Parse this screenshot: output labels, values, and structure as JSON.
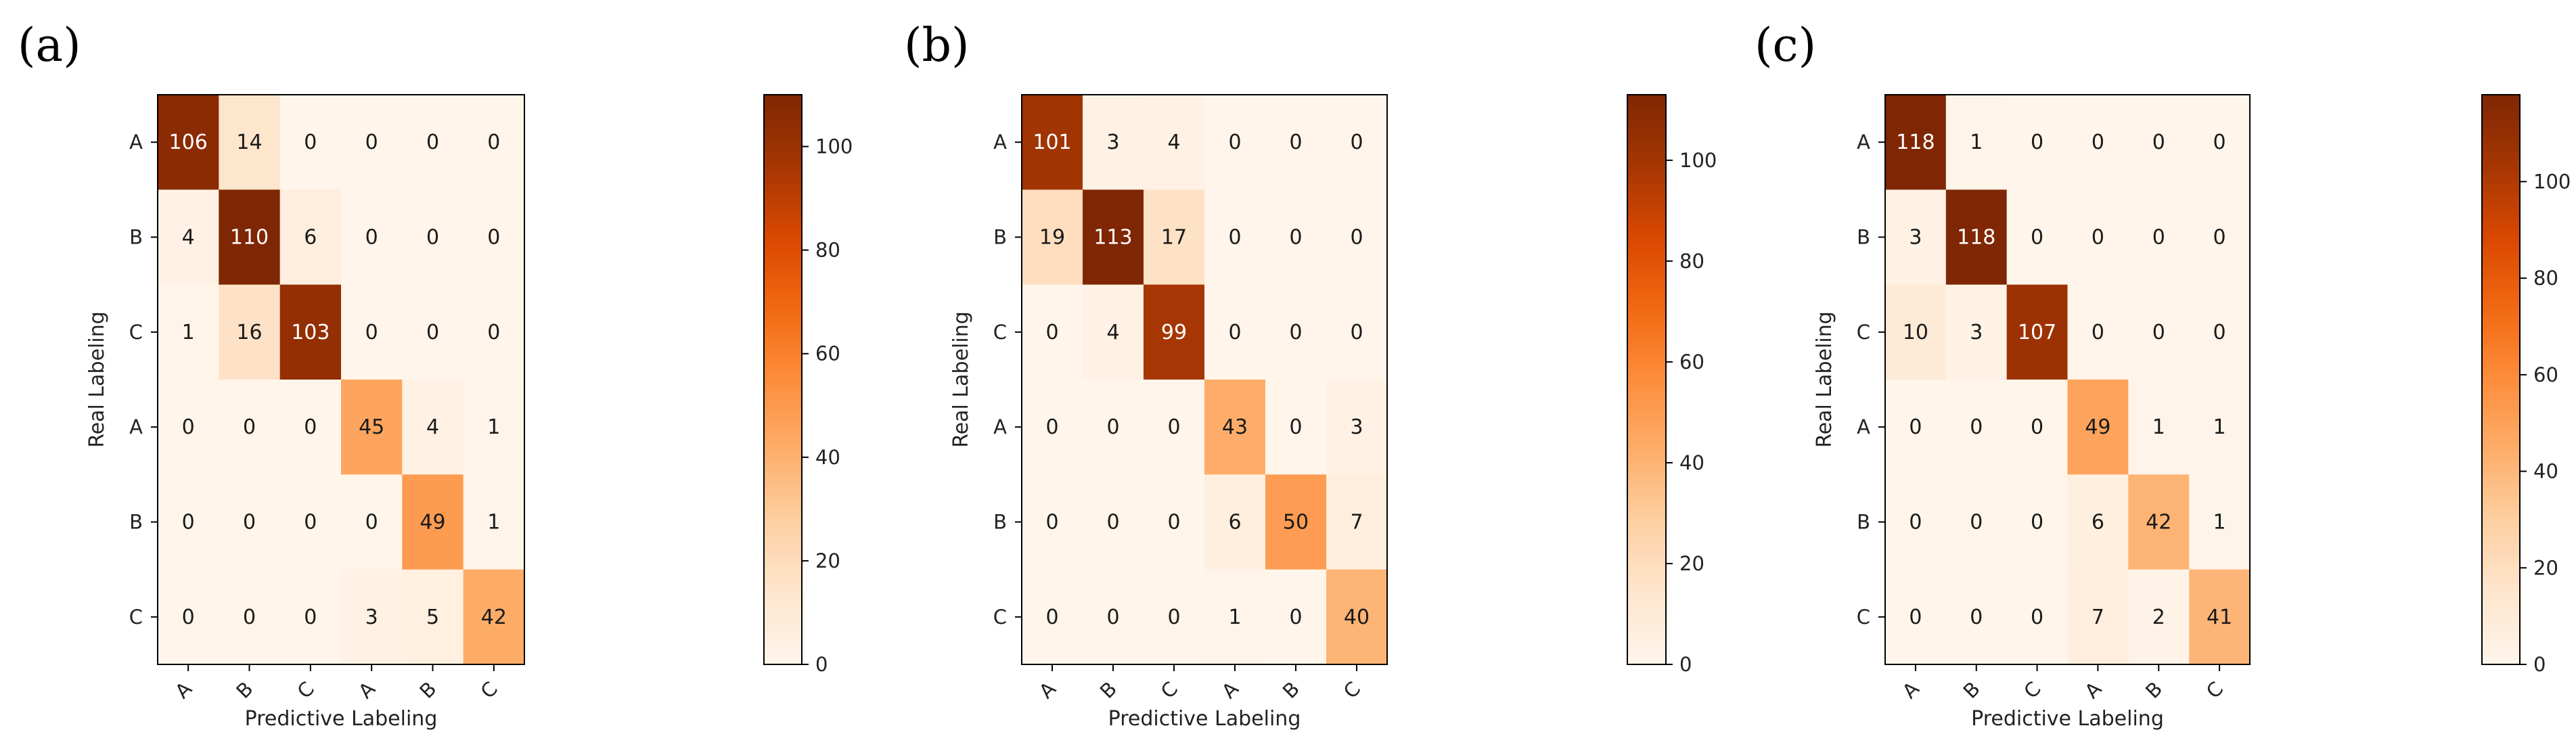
{
  "chart_data": [
    {
      "panel_label": "(a)",
      "type": "heatmap",
      "title": "",
      "xlabel": "Predictive Labeling",
      "ylabel": "Real Labeling",
      "x_categories": [
        "A",
        "B",
        "C",
        "A",
        "B",
        "C"
      ],
      "y_categories": [
        "A",
        "B",
        "C",
        "A",
        "B",
        "C"
      ],
      "values": [
        [
          106,
          14,
          0,
          0,
          0,
          0
        ],
        [
          4,
          110,
          6,
          0,
          0,
          0
        ],
        [
          1,
          16,
          103,
          0,
          0,
          0
        ],
        [
          0,
          0,
          0,
          45,
          4,
          1
        ],
        [
          0,
          0,
          0,
          0,
          49,
          1
        ],
        [
          0,
          0,
          0,
          3,
          5,
          42
        ]
      ],
      "colormap": "Oranges",
      "colorbar": {
        "vmin": 0,
        "vmax": 110,
        "ticks": [
          0,
          20,
          40,
          60,
          80,
          100
        ]
      }
    },
    {
      "panel_label": "(b)",
      "type": "heatmap",
      "title": "",
      "xlabel": "Predictive Labeling",
      "ylabel": "Real Labeling",
      "x_categories": [
        "A",
        "B",
        "C",
        "A",
        "B",
        "C"
      ],
      "y_categories": [
        "A",
        "B",
        "C",
        "A",
        "B",
        "C"
      ],
      "values": [
        [
          101,
          3,
          4,
          0,
          0,
          0
        ],
        [
          19,
          113,
          17,
          0,
          0,
          0
        ],
        [
          0,
          4,
          99,
          0,
          0,
          0
        ],
        [
          0,
          0,
          0,
          43,
          0,
          3
        ],
        [
          0,
          0,
          0,
          6,
          50,
          7
        ],
        [
          0,
          0,
          0,
          1,
          0,
          40
        ]
      ],
      "colormap": "Oranges",
      "colorbar": {
        "vmin": 0,
        "vmax": 113,
        "ticks": [
          0,
          20,
          40,
          60,
          80,
          100
        ]
      }
    },
    {
      "panel_label": "(c)",
      "type": "heatmap",
      "title": "",
      "xlabel": "Predictive Labeling",
      "ylabel": "Real Labeling",
      "x_categories": [
        "A",
        "B",
        "C",
        "A",
        "B",
        "C"
      ],
      "y_categories": [
        "A",
        "B",
        "C",
        "A",
        "B",
        "C"
      ],
      "values": [
        [
          118,
          1,
          0,
          0,
          0,
          0
        ],
        [
          3,
          118,
          0,
          0,
          0,
          0
        ],
        [
          10,
          3,
          107,
          0,
          0,
          0
        ],
        [
          0,
          0,
          0,
          49,
          1,
          1
        ],
        [
          0,
          0,
          0,
          6,
          42,
          1
        ],
        [
          0,
          0,
          0,
          7,
          2,
          41
        ]
      ],
      "colormap": "Oranges",
      "colorbar": {
        "vmin": 0,
        "vmax": 118,
        "ticks": [
          0,
          20,
          40,
          60,
          80,
          100
        ]
      }
    }
  ]
}
